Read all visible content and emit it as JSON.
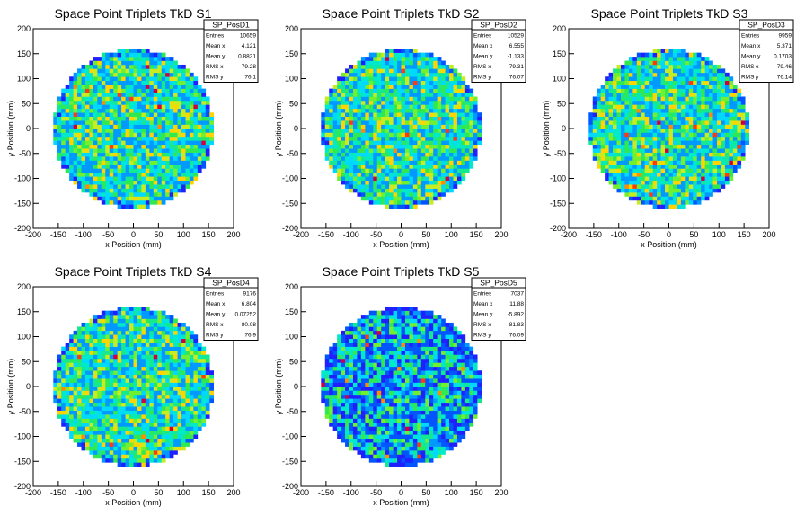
{
  "chart_data": [
    {
      "type": "heatmap",
      "title": "Space Point Triplets TkD S1",
      "xlabel": "x Position (mm)",
      "ylabel": "y Position (mm)",
      "xlim": [
        -200,
        200
      ],
      "ylim": [
        -200,
        200
      ],
      "xticks": [
        "-200",
        "-150",
        "-100",
        "-50",
        "0",
        "50",
        "100",
        "150",
        "200"
      ],
      "yticks": [
        "-200",
        "-150",
        "-100",
        "-50",
        "0",
        "50",
        "100",
        "150",
        "200"
      ],
      "region_radius_mm": 160,
      "stats": {
        "name": "SP_PosD1",
        "rows": [
          {
            "label": "Entries",
            "value": "10659"
          },
          {
            "label": "Mean x",
            "value": "4.121"
          },
          {
            "label": "Mean y",
            "value": "0.8831"
          },
          {
            "label": "RMS x",
            "value": "79.28"
          },
          {
            "label": "RMS y",
            "value": "76.1"
          }
        ]
      }
    },
    {
      "type": "heatmap",
      "title": "Space Point Triplets TkD S2",
      "xlabel": "x Position (mm)",
      "ylabel": "y Position (mm)",
      "xlim": [
        -200,
        200
      ],
      "ylim": [
        -200,
        200
      ],
      "xticks": [
        "-200",
        "-150",
        "-100",
        "-50",
        "0",
        "50",
        "100",
        "150",
        "200"
      ],
      "yticks": [
        "-200",
        "-150",
        "-100",
        "-50",
        "0",
        "50",
        "100",
        "150",
        "200"
      ],
      "region_radius_mm": 160,
      "stats": {
        "name": "SP_PosD2",
        "rows": [
          {
            "label": "Entries",
            "value": "10529"
          },
          {
            "label": "Mean x",
            "value": "6.555"
          },
          {
            "label": "Mean y",
            "value": "-1.133"
          },
          {
            "label": "RMS x",
            "value": "79.31"
          },
          {
            "label": "RMS y",
            "value": "76.07"
          }
        ]
      }
    },
    {
      "type": "heatmap",
      "title": "Space Point Triplets TkD S3",
      "xlabel": "x Position (mm)",
      "ylabel": "y Position (mm)",
      "xlim": [
        -200,
        200
      ],
      "ylim": [
        -200,
        200
      ],
      "xticks": [
        "-200",
        "-150",
        "-100",
        "-50",
        "0",
        "50",
        "100",
        "150",
        "200"
      ],
      "yticks": [
        "-200",
        "-150",
        "-100",
        "-50",
        "0",
        "50",
        "100",
        "150",
        "200"
      ],
      "region_radius_mm": 160,
      "stats": {
        "name": "SP_PosD3",
        "rows": [
          {
            "label": "Entries",
            "value": "9959"
          },
          {
            "label": "Mean x",
            "value": "5.371"
          },
          {
            "label": "Mean y",
            "value": "0.1703"
          },
          {
            "label": "RMS x",
            "value": "79.46"
          },
          {
            "label": "RMS y",
            "value": "76.14"
          }
        ]
      }
    },
    {
      "type": "heatmap",
      "title": "Space Point Triplets TkD S4",
      "xlabel": "x Position (mm)",
      "ylabel": "y Position (mm)",
      "xlim": [
        -200,
        200
      ],
      "ylim": [
        -200,
        200
      ],
      "xticks": [
        "-200",
        "-150",
        "-100",
        "-50",
        "0",
        "50",
        "100",
        "150",
        "200"
      ],
      "yticks": [
        "-200",
        "-150",
        "-100",
        "-50",
        "0",
        "50",
        "100",
        "150",
        "200"
      ],
      "region_radius_mm": 160,
      "stats": {
        "name": "SP_PosD4",
        "rows": [
          {
            "label": "Entries",
            "value": "9176"
          },
          {
            "label": "Mean x",
            "value": "6.804"
          },
          {
            "label": "Mean y",
            "value": "0.07252"
          },
          {
            "label": "RMS x",
            "value": "80.08"
          },
          {
            "label": "RMS y",
            "value": "76.9"
          }
        ]
      }
    },
    {
      "type": "heatmap",
      "title": "Space Point Triplets TkD S5",
      "xlabel": "x Position (mm)",
      "ylabel": "y Position (mm)",
      "xlim": [
        -200,
        200
      ],
      "ylim": [
        -200,
        200
      ],
      "xticks": [
        "-200",
        "-150",
        "-100",
        "-50",
        "0",
        "50",
        "100",
        "150",
        "200"
      ],
      "yticks": [
        "-200",
        "-150",
        "-100",
        "-50",
        "0",
        "50",
        "100",
        "150",
        "200"
      ],
      "region_radius_mm": 160,
      "stats": {
        "name": "SP_PosD5",
        "rows": [
          {
            "label": "Entries",
            "value": "7037"
          },
          {
            "label": "Mean x",
            "value": "11.88"
          },
          {
            "label": "Mean y",
            "value": "-5.892"
          },
          {
            "label": "RMS x",
            "value": "81.83"
          },
          {
            "label": "RMS y",
            "value": "76.09"
          }
        ]
      }
    }
  ]
}
